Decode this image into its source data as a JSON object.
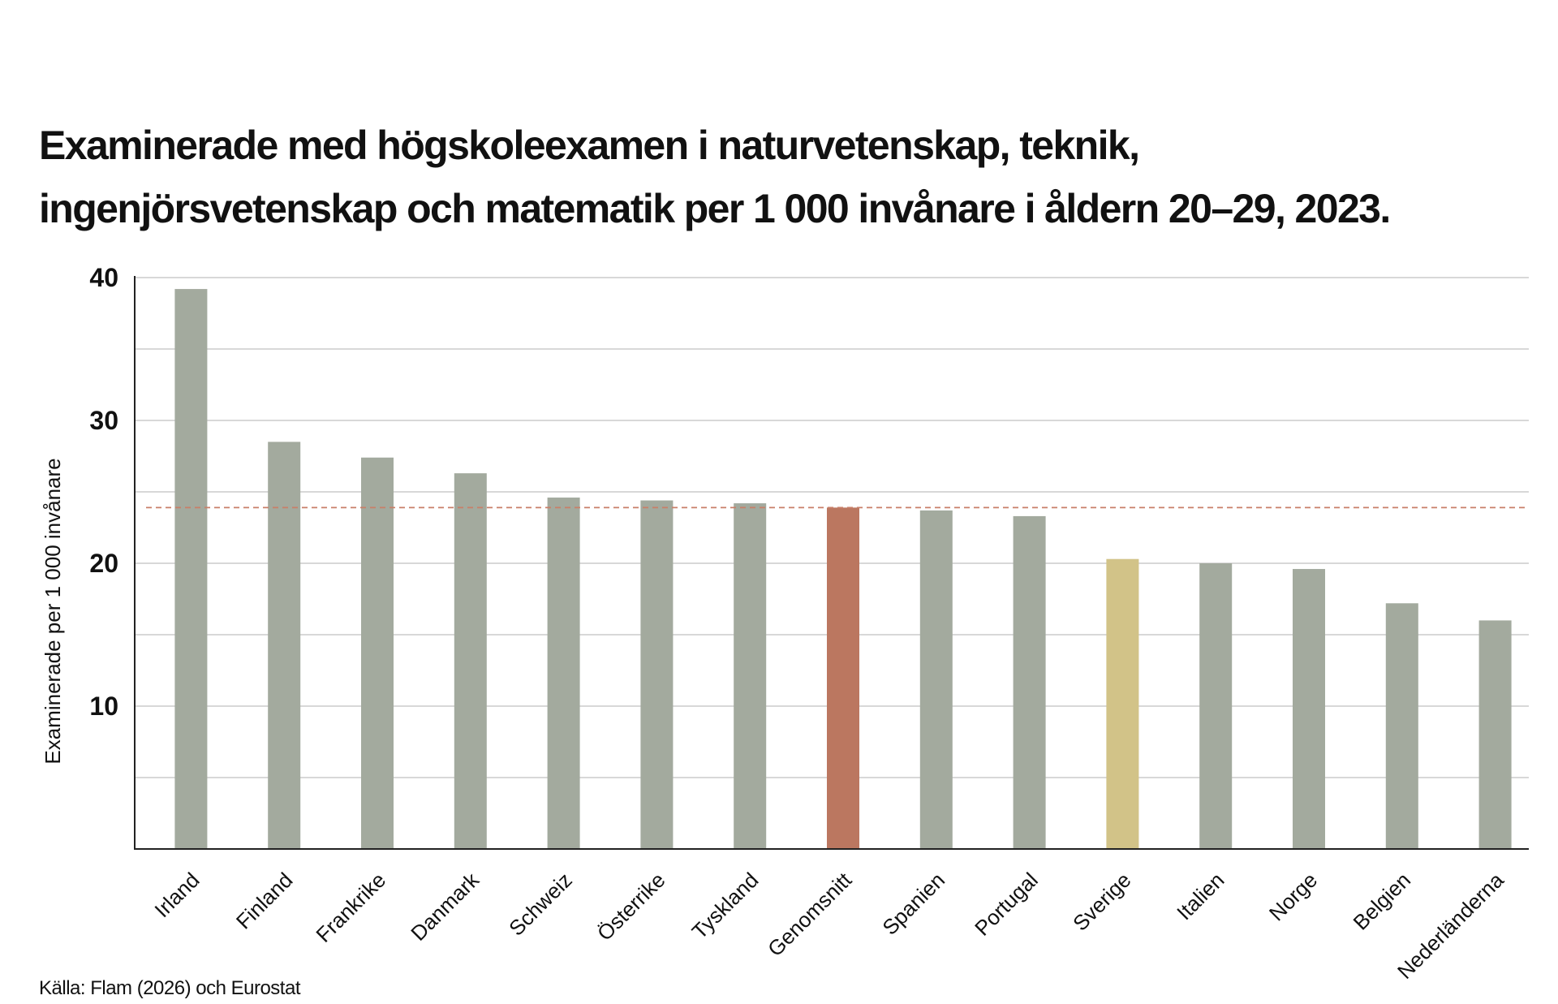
{
  "chart_data": {
    "type": "bar",
    "title_lines": [
      "Examinerade med högskoleexamen i naturvetenskap, teknik,",
      "ingenjörsvetenskap och matematik per 1 000 invånare i åldern 20–29, 2023."
    ],
    "ylabel": "Examinerade per 1 000 invånare",
    "xlabel": "",
    "ylim": [
      0,
      40
    ],
    "yticks": [
      "10",
      "20",
      "30",
      "40"
    ],
    "grid": true,
    "categories": [
      "Irland",
      "Finland",
      "Frankrike",
      "Danmark",
      "Schweiz",
      "Österrike",
      "Tyskland",
      "Genomsnitt",
      "Spanien",
      "Portugal",
      "Sverige",
      "Italien",
      "Norge",
      "Belgien",
      "Nederländerna"
    ],
    "values": [
      39.2,
      28.5,
      27.4,
      26.3,
      24.6,
      24.4,
      24.2,
      23.9,
      23.7,
      23.3,
      20.3,
      20.0,
      19.6,
      17.2,
      16.0
    ],
    "reference_line": 23.9,
    "source": "Källa: Flam (2026) och Eurostat"
  },
  "colors": {
    "default_bar": "#a3aa9e",
    "average_bar": "#bb7760",
    "highlight_bar": "#d2c388",
    "reference_line": "#c87f68",
    "grid": "#cccccc",
    "axis": "#222222"
  },
  "highlight": {
    "average_category": "Genomsnitt",
    "highlight_category": "Sverige"
  }
}
